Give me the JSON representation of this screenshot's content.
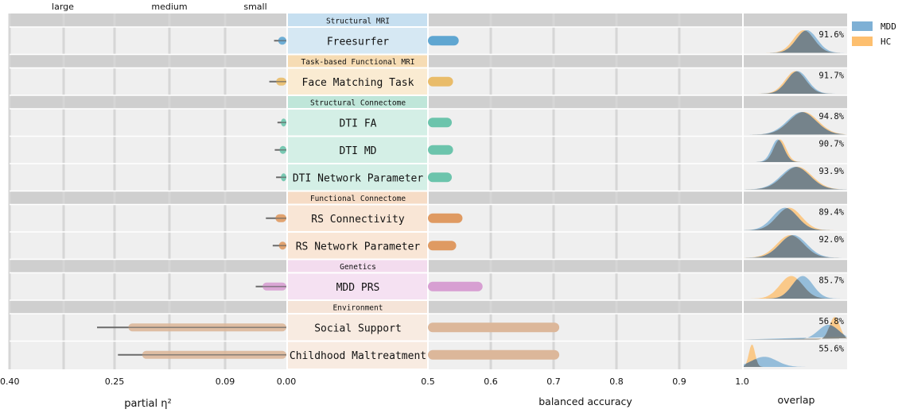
{
  "chart_data": {
    "type": "bar",
    "eta_scale": {
      "ticks": [
        0.4,
        0.25,
        0.09,
        0.0
      ],
      "tick_labels": [
        "0.40",
        "0.25",
        "0.09",
        "0.00"
      ],
      "top_labels": [
        "large",
        "medium",
        "small"
      ],
      "xlabel": "partial η²"
    },
    "accuracy_scale": {
      "ticks": [
        0.5,
        0.6,
        0.7,
        0.8,
        0.9,
        1.0
      ],
      "tick_labels": [
        "0.5",
        "0.6",
        "0.7",
        "0.8",
        "0.9",
        "1.0"
      ],
      "xlabel": "balanced accuracy"
    },
    "overlap_label": "overlap",
    "legend": [
      {
        "name": "MDD",
        "color": "#7eb0d5"
      },
      {
        "name": "HC",
        "color": "#fdbf6f"
      }
    ],
    "groups": [
      {
        "title": "Structural MRI",
        "color": "#c6dff0",
        "rows": [
          {
            "label": "Freesurfer",
            "color": "#5fa6d1",
            "bg": "#d6e8f3",
            "eta_bar": [
              0.0,
              0.012
            ],
            "eta_whisker": [
              0.0,
              0.018
            ],
            "accuracy": 0.549,
            "overlap": "91.6%",
            "dist": {
              "mdd": [
                0.61,
                0.1,
                1.0
              ],
              "hc": [
                0.58,
                0.1,
                1.0
              ]
            }
          }
        ]
      },
      {
        "title": "Task-based Functional MRI",
        "color": "#f6dcb4",
        "rows": [
          {
            "label": "Face Matching Task",
            "color": "#e9bc6a",
            "bg": "#faebd2",
            "eta_bar": [
              0.0,
              0.015
            ],
            "eta_whisker": [
              0.0,
              0.025
            ],
            "accuracy": 0.54,
            "overlap": "91.7%",
            "dist": {
              "mdd": [
                0.52,
                0.1,
                1.0
              ],
              "hc": [
                0.5,
                0.1,
                1.0
              ]
            }
          }
        ]
      },
      {
        "title": "Structural Connectome",
        "color": "#bfe6d9",
        "rows": [
          {
            "label": "DTI FA",
            "color": "#6cc4ac",
            "bg": "#d4efe6",
            "eta_bar": [
              0.0,
              0.008
            ],
            "eta_whisker": [
              0.0,
              0.013
            ],
            "accuracy": 0.538,
            "overlap": "94.8%",
            "dist": {
              "mdd": [
                0.56,
                0.14,
                1.0
              ],
              "hc": [
                0.58,
                0.14,
                1.0
              ]
            }
          },
          {
            "label": "DTI MD",
            "color": "#6cc4ac",
            "bg": "#d4efe6",
            "eta_bar": [
              0.0,
              0.01
            ],
            "eta_whisker": [
              0.0,
              0.017
            ],
            "accuracy": 0.54,
            "overlap": "90.7%",
            "dist": {
              "mdd": [
                0.33,
                0.06,
                1.0
              ],
              "hc": [
                0.35,
                0.06,
                1.0
              ]
            }
          },
          {
            "label": "DTI Network Parameter",
            "color": "#6cc4ac",
            "bg": "#d4efe6",
            "eta_bar": [
              0.0,
              0.008
            ],
            "eta_whisker": [
              0.0,
              0.015
            ],
            "accuracy": 0.538,
            "overlap": "93.9%",
            "dist": {
              "mdd": [
                0.5,
                0.14,
                1.0
              ],
              "hc": [
                0.52,
                0.14,
                1.0
              ]
            }
          }
        ]
      },
      {
        "title": "Functional Connectome",
        "color": "#f6dcc6",
        "rows": [
          {
            "label": "RS Connectivity",
            "color": "#df9a62",
            "bg": "#f9e6d6",
            "eta_bar": [
              0.0,
              0.016
            ],
            "eta_whisker": [
              0.0,
              0.03
            ],
            "accuracy": 0.555,
            "overlap": "89.4%",
            "dist": {
              "mdd": [
                0.4,
                0.12,
                1.0
              ],
              "hc": [
                0.44,
                0.12,
                1.0
              ]
            }
          },
          {
            "label": "RS Network Parameter",
            "color": "#df9a62",
            "bg": "#f9e6d6",
            "eta_bar": [
              0.0,
              0.011
            ],
            "eta_whisker": [
              0.0,
              0.02
            ],
            "accuracy": 0.545,
            "overlap": "92.0%",
            "dist": {
              "mdd": [
                0.48,
                0.13,
                1.0
              ],
              "hc": [
                0.45,
                0.13,
                1.0
              ]
            }
          }
        ]
      },
      {
        "title": "Genetics",
        "color": "#f3dcee",
        "rows": [
          {
            "label": "MDD PRS",
            "color": "#d79fd2",
            "bg": "#f5e1f2",
            "eta_bar": [
              0.0,
              0.035
            ],
            "eta_whisker": [
              0.0,
              0.045
            ],
            "accuracy": 0.587,
            "overlap": "85.7%",
            "dist": {
              "mdd": [
                0.57,
                0.1,
                1.0
              ],
              "hc": [
                0.46,
                0.11,
                1.0
              ]
            }
          }
        ]
      },
      {
        "title": "Environment",
        "color": "#f5e4d8",
        "rows": [
          {
            "label": "Social Support",
            "color": "#dcb79a",
            "bg": "#f8ebe1",
            "eta_bar": [
              0.0,
              0.23
            ],
            "eta_whisker": [
              0.0,
              0.275
            ],
            "accuracy": 0.709,
            "overlap": "56.8%",
            "dist": {
              "mdd": [
                0.82,
                0.1,
                0.65
              ],
              "hc": [
                0.88,
                0.05,
                1.0
              ]
            }
          },
          {
            "label": "Childhood Maltreatment",
            "color": "#dcb79a",
            "bg": "#f8ebe1",
            "eta_bar": [
              0.0,
              0.21
            ],
            "eta_whisker": [
              0.0,
              0.245
            ],
            "accuracy": 0.709,
            "overlap": "55.6%",
            "dist": {
              "mdd": [
                0.2,
                0.12,
                0.45
              ],
              "hc": [
                0.08,
                0.03,
                1.0
              ]
            }
          }
        ]
      }
    ]
  }
}
